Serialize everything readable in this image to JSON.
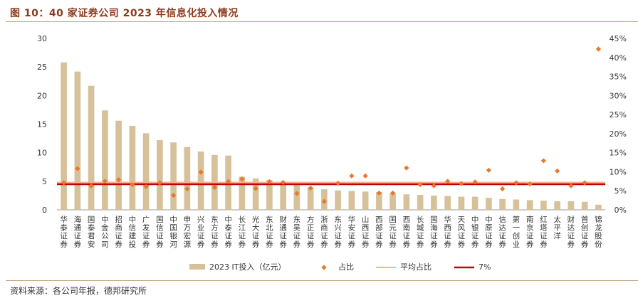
{
  "title": "图 10：40 家证券公司 2023 年信息化投入情况",
  "source": "资料来源：各公司年报，德邦研究所",
  "colors": {
    "bar": "#d6c19a",
    "dot": "#e8782a",
    "avg": "#f3b48a",
    "ref": "#c00000"
  },
  "chart_data": {
    "type": "bar",
    "categories": [
      "华泰证券",
      "海通证券",
      "国泰君安",
      "中金公司",
      "招商证券",
      "中信建投",
      "广发证券",
      "国信证券",
      "中国银河",
      "申万宏源",
      "兴业证券",
      "东方证券",
      "中泰证券",
      "长江证券",
      "光大证券",
      "东北证券",
      "财通证券",
      "东吴证券",
      "方正证券",
      "浙商证券",
      "东兴证券",
      "华安证券",
      "山西证券",
      "西部证券",
      "国元证券",
      "西南证券",
      "长城证券",
      "国海证券",
      "华西证券",
      "天风证券",
      "中银证券",
      "中原证券",
      "信达证券",
      "第一创业",
      "南京证券",
      "红塔证券",
      "太平洋",
      "财达证券",
      "首创证券",
      "锦龙股份"
    ],
    "series": [
      {
        "name": "2023 IT投入（亿元）",
        "axis": "left",
        "kind": "bar",
        "values": [
          25.8,
          24.2,
          21.7,
          17.4,
          15.6,
          14.7,
          13.4,
          12.2,
          11.8,
          11.0,
          10.2,
          9.6,
          9.5,
          5.8,
          5.5,
          5.2,
          4.9,
          4.4,
          3.9,
          3.6,
          3.4,
          3.3,
          3.2,
          3.1,
          3.0,
          2.7,
          2.6,
          2.5,
          2.4,
          2.3,
          2.3,
          2.1,
          1.9,
          1.8,
          1.7,
          1.6,
          1.5,
          1.5,
          1.4,
          0.9
        ]
      },
      {
        "name": "占比",
        "axis": "right",
        "kind": "scatter",
        "values": [
          7.1,
          10.8,
          6.3,
          7.5,
          7.9,
          6.6,
          6.1,
          7.1,
          3.8,
          5.5,
          9.9,
          5.9,
          7.4,
          8.1,
          5.6,
          7.4,
          7.2,
          4.3,
          5.7,
          2.2,
          7.0,
          8.9,
          8.9,
          4.4,
          4.4,
          11.0,
          6.6,
          6.3,
          7.5,
          6.9,
          7.3,
          10.4,
          5.5,
          7.1,
          6.8,
          12.9,
          10.2,
          6.3,
          7.1,
          42.2
        ]
      },
      {
        "name": "平均占比",
        "axis": "right",
        "kind": "line",
        "value": 7.0
      },
      {
        "name": "7%",
        "axis": "right",
        "kind": "line",
        "value": 7.0
      }
    ],
    "y_left": {
      "min": 0,
      "max": 30,
      "ticks": [
        "0",
        "5",
        "10",
        "15",
        "20",
        "25",
        "30"
      ]
    },
    "y_right": {
      "min": 0,
      "max": 45,
      "ticks": [
        "0%",
        "5%",
        "10%",
        "15%",
        "20%",
        "25%",
        "30%",
        "35%",
        "40%",
        "45%"
      ]
    },
    "grid": false,
    "legend_position": "bottom"
  }
}
